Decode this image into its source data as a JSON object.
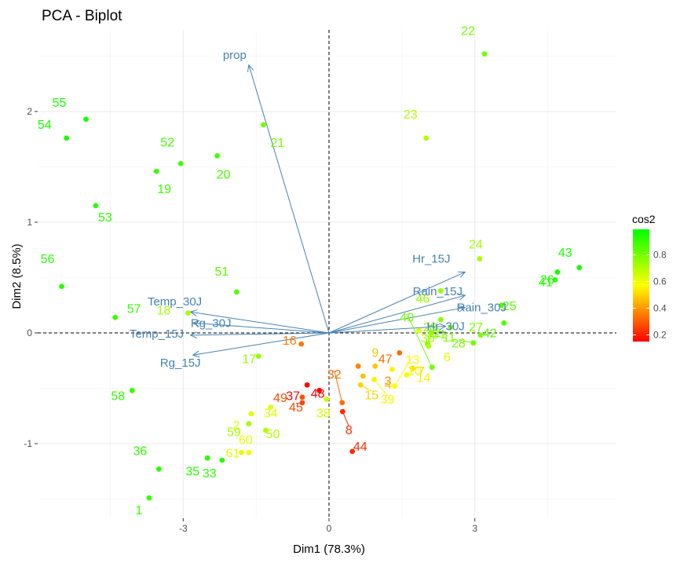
{
  "chart_data": {
    "type": "scatter",
    "title": "PCA - Biplot",
    "xlabel": "Dim1 (78.3%)",
    "ylabel": "Dim2 (8.5%)",
    "xlim": [
      -5.0,
      5.3
    ],
    "ylim": [
      -1.67,
      2.72
    ],
    "x_ticks": [
      -3,
      0,
      3
    ],
    "y_ticks": [
      -1,
      0,
      1,
      2
    ],
    "grid": true,
    "reference_lines": {
      "x": 0,
      "y": 0,
      "style": "dashed"
    },
    "legend": {
      "title": "cos2",
      "position": "right",
      "ticks": [
        0.2,
        0.4,
        0.6,
        0.8
      ],
      "range": [
        0.15,
        0.99
      ],
      "colors": [
        "#ff0000",
        "#ffff00",
        "#00ff00"
      ]
    },
    "arrow_color": "#4682b4",
    "individuals": [
      {
        "label": "1",
        "x": -3.7,
        "y": -1.49,
        "cos2": 0.9
      },
      {
        "label": "2",
        "x": -1.6,
        "y": -0.73,
        "cos2": 0.62
      },
      {
        "label": "3",
        "x": 0.6,
        "y": -0.3,
        "cos2": 0.37
      },
      {
        "label": "4",
        "x": 0.7,
        "y": -0.39,
        "cos2": 0.47
      },
      {
        "label": "6",
        "x": 1.85,
        "y": 0.02,
        "cos2": 0.62
      },
      {
        "label": "7",
        "x": 1.72,
        "y": -0.32,
        "cos2": 0.5
      },
      {
        "label": "8",
        "x": 0.28,
        "y": -0.71,
        "cos2": 0.22
      },
      {
        "label": "9",
        "x": 0.95,
        "y": -0.3,
        "cos2": 0.48
      },
      {
        "label": "10",
        "x": 1.6,
        "y": -0.38,
        "cos2": 0.56
      },
      {
        "label": "11",
        "x": 2.5,
        "y": 0.05,
        "cos2": 0.78
      },
      {
        "label": "12",
        "x": 2.03,
        "y": -0.1,
        "cos2": 0.8
      },
      {
        "label": "13",
        "x": 1.35,
        "y": -0.48,
        "cos2": 0.58
      },
      {
        "label": "14",
        "x": 1.3,
        "y": -0.33,
        "cos2": 0.55
      },
      {
        "label": "15",
        "x": 0.65,
        "y": -0.47,
        "cos2": 0.5
      },
      {
        "label": "16",
        "x": -0.57,
        "y": -0.1,
        "cos2": 0.35
      },
      {
        "label": "17",
        "x": -1.45,
        "y": -0.21,
        "cos2": 0.75
      },
      {
        "label": "18",
        "x": -2.9,
        "y": 0.18,
        "cos2": 0.72
      },
      {
        "label": "19",
        "x": -3.55,
        "y": 1.46,
        "cos2": 0.9
      },
      {
        "label": "20",
        "x": -2.3,
        "y": 1.6,
        "cos2": 0.88
      },
      {
        "label": "21",
        "x": -1.35,
        "y": 1.88,
        "cos2": 0.8
      },
      {
        "label": "22",
        "x": 3.2,
        "y": 2.52,
        "cos2": 0.8
      },
      {
        "label": "23",
        "x": 2.0,
        "y": 1.76,
        "cos2": 0.7
      },
      {
        "label": "24",
        "x": 3.1,
        "y": 0.67,
        "cos2": 0.72
      },
      {
        "label": "25",
        "x": 3.55,
        "y": 0.25,
        "cos2": 0.85
      },
      {
        "label": "26",
        "x": 4.7,
        "y": 0.55,
        "cos2": 0.95
      },
      {
        "label": "27",
        "x": 3.12,
        "y": -0.02,
        "cos2": 0.78
      },
      {
        "label": "28",
        "x": 2.97,
        "y": -0.09,
        "cos2": 0.8
      },
      {
        "label": "29",
        "x": 2.1,
        "y": 0.0,
        "cos2": 0.75
      },
      {
        "label": "30",
        "x": 2.05,
        "y": -0.12,
        "cos2": 0.7
      },
      {
        "label": "31",
        "x": 2.3,
        "y": 0.12,
        "cos2": 0.77
      },
      {
        "label": "32",
        "x": 0.27,
        "y": -0.63,
        "cos2": 0.33
      },
      {
        "label": "33",
        "x": -2.2,
        "y": -1.15,
        "cos2": 0.92
      },
      {
        "label": "34",
        "x": -1.2,
        "y": -0.67,
        "cos2": 0.62
      },
      {
        "label": "35",
        "x": -2.5,
        "y": -1.13,
        "cos2": 0.92
      },
      {
        "label": "36",
        "x": -3.5,
        "y": -1.23,
        "cos2": 0.92
      },
      {
        "label": "37",
        "x": -0.45,
        "y": -0.47,
        "cos2": 0.15
      },
      {
        "label": "38",
        "x": -0.05,
        "y": -0.6,
        "cos2": 0.65
      },
      {
        "label": "39",
        "x": 0.93,
        "y": -0.42,
        "cos2": 0.55
      },
      {
        "label": "40",
        "x": 2.12,
        "y": -0.31,
        "cos2": 0.8
      },
      {
        "label": "41",
        "x": 4.65,
        "y": 0.48,
        "cos2": 0.92
      },
      {
        "label": "42",
        "x": 3.6,
        "y": 0.09,
        "cos2": 0.85
      },
      {
        "label": "43",
        "x": 5.15,
        "y": 0.59,
        "cos2": 0.95
      },
      {
        "label": "44",
        "x": 0.48,
        "y": -1.07,
        "cos2": 0.22
      },
      {
        "label": "45",
        "x": -0.55,
        "y": -0.63,
        "cos2": 0.27
      },
      {
        "label": "46",
        "x": 2.3,
        "y": 0.38,
        "cos2": 0.75
      },
      {
        "label": "47",
        "x": 1.45,
        "y": -0.18,
        "cos2": 0.33
      },
      {
        "label": "48",
        "x": -0.2,
        "y": -0.52,
        "cos2": 0.15
      },
      {
        "label": "49",
        "x": -0.55,
        "y": -0.58,
        "cos2": 0.28
      },
      {
        "label": "50",
        "x": -1.3,
        "y": -0.88,
        "cos2": 0.7
      },
      {
        "label": "51",
        "x": -1.9,
        "y": 0.37,
        "cos2": 0.85
      },
      {
        "label": "52",
        "x": -3.05,
        "y": 1.53,
        "cos2": 0.88
      },
      {
        "label": "53",
        "x": -4.8,
        "y": 1.15,
        "cos2": 0.92
      },
      {
        "label": "54",
        "x": -5.4,
        "y": 1.76,
        "cos2": 0.95
      },
      {
        "label": "55",
        "x": -5.0,
        "y": 1.93,
        "cos2": 0.95
      },
      {
        "label": "56",
        "x": -5.5,
        "y": 0.42,
        "cos2": 0.92
      },
      {
        "label": "57",
        "x": -4.4,
        "y": 0.14,
        "cos2": 0.9
      },
      {
        "label": "58",
        "x": -4.05,
        "y": -0.52,
        "cos2": 0.9
      },
      {
        "label": "59",
        "x": -1.65,
        "y": -0.82,
        "cos2": 0.72
      },
      {
        "label": "60",
        "x": -1.65,
        "y": -1.08,
        "cos2": 0.6
      },
      {
        "label": "61",
        "x": -1.8,
        "y": -1.08,
        "cos2": 0.62
      }
    ],
    "variables": [
      {
        "name": "prop",
        "x": -1.65,
        "y": 2.42
      },
      {
        "name": "Hr_15J",
        "x": 2.8,
        "y": 0.55
      },
      {
        "name": "Rain_15J",
        "x": 2.8,
        "y": 0.34
      },
      {
        "name": "Rain_30J",
        "x": 2.8,
        "y": 0.23
      },
      {
        "name": "Hr_30J",
        "x": 2.4,
        "y": 0.06
      },
      {
        "name": "Temp_30J",
        "x": -2.85,
        "y": 0.19
      },
      {
        "name": "Rg_30J",
        "x": -2.8,
        "y": 0.09
      },
      {
        "name": "Temp_15J",
        "x": -2.85,
        "y": -0.02
      },
      {
        "name": "Rg_15J",
        "x": -2.8,
        "y": -0.2
      }
    ]
  }
}
